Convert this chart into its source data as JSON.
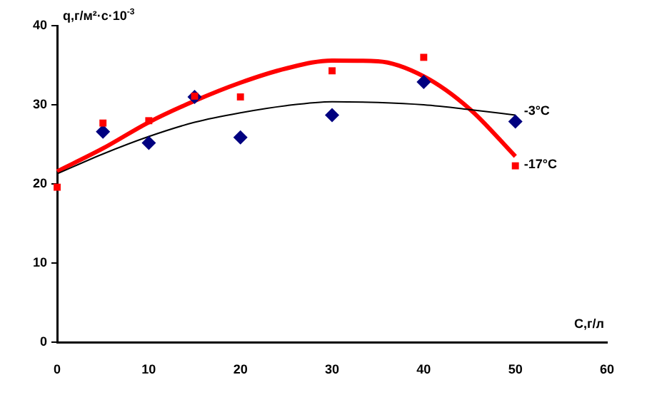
{
  "chart_data": {
    "type": "scatter",
    "xlabel": "С,г/л",
    "ylabel": "q,г/м²·с·10$^{-3}$",
    "xlim": [
      0,
      60
    ],
    "xticks": [
      0,
      10,
      20,
      30,
      40,
      50,
      60
    ],
    "ylim": [
      0,
      40
    ],
    "yticks": [
      0,
      10,
      20,
      30,
      40
    ],
    "grid": false,
    "legend": false,
    "series": [
      {
        "marker": "diamond",
        "color": "#000080",
        "x": [
          5,
          10,
          15,
          20,
          30,
          40,
          50
        ],
        "values": [
          26.6,
          25.2,
          31,
          25.9,
          28.7,
          32.9,
          27.9
        ]
      },
      {
        "marker": "square",
        "color": "#ff0000",
        "x": [
          0,
          5,
          10,
          15,
          20,
          30,
          40,
          50
        ],
        "values": [
          19.6,
          27.7,
          28,
          31.1,
          31,
          34.3,
          36,
          22.3
        ]
      },
      {
        "type": "line",
        "name": "-3°C",
        "color": "#000000",
        "x": [
          0,
          5,
          10,
          15,
          20,
          25,
          30,
          35,
          40,
          45,
          50
        ],
        "values": [
          21.3,
          23.8,
          26,
          27.8,
          29,
          29.9,
          30.4,
          30.3,
          30,
          29.4,
          28.7
        ]
      },
      {
        "type": "line",
        "name": "-17°C",
        "color": "#ff0000",
        "x": [
          0,
          5,
          10,
          15,
          20,
          25,
          30,
          35,
          40,
          45,
          50
        ],
        "values": [
          21.6,
          24.5,
          27.8,
          30.5,
          32.8,
          34.6,
          35.6,
          35.5,
          33.6,
          29.5,
          23.5
        ]
      }
    ]
  }
}
